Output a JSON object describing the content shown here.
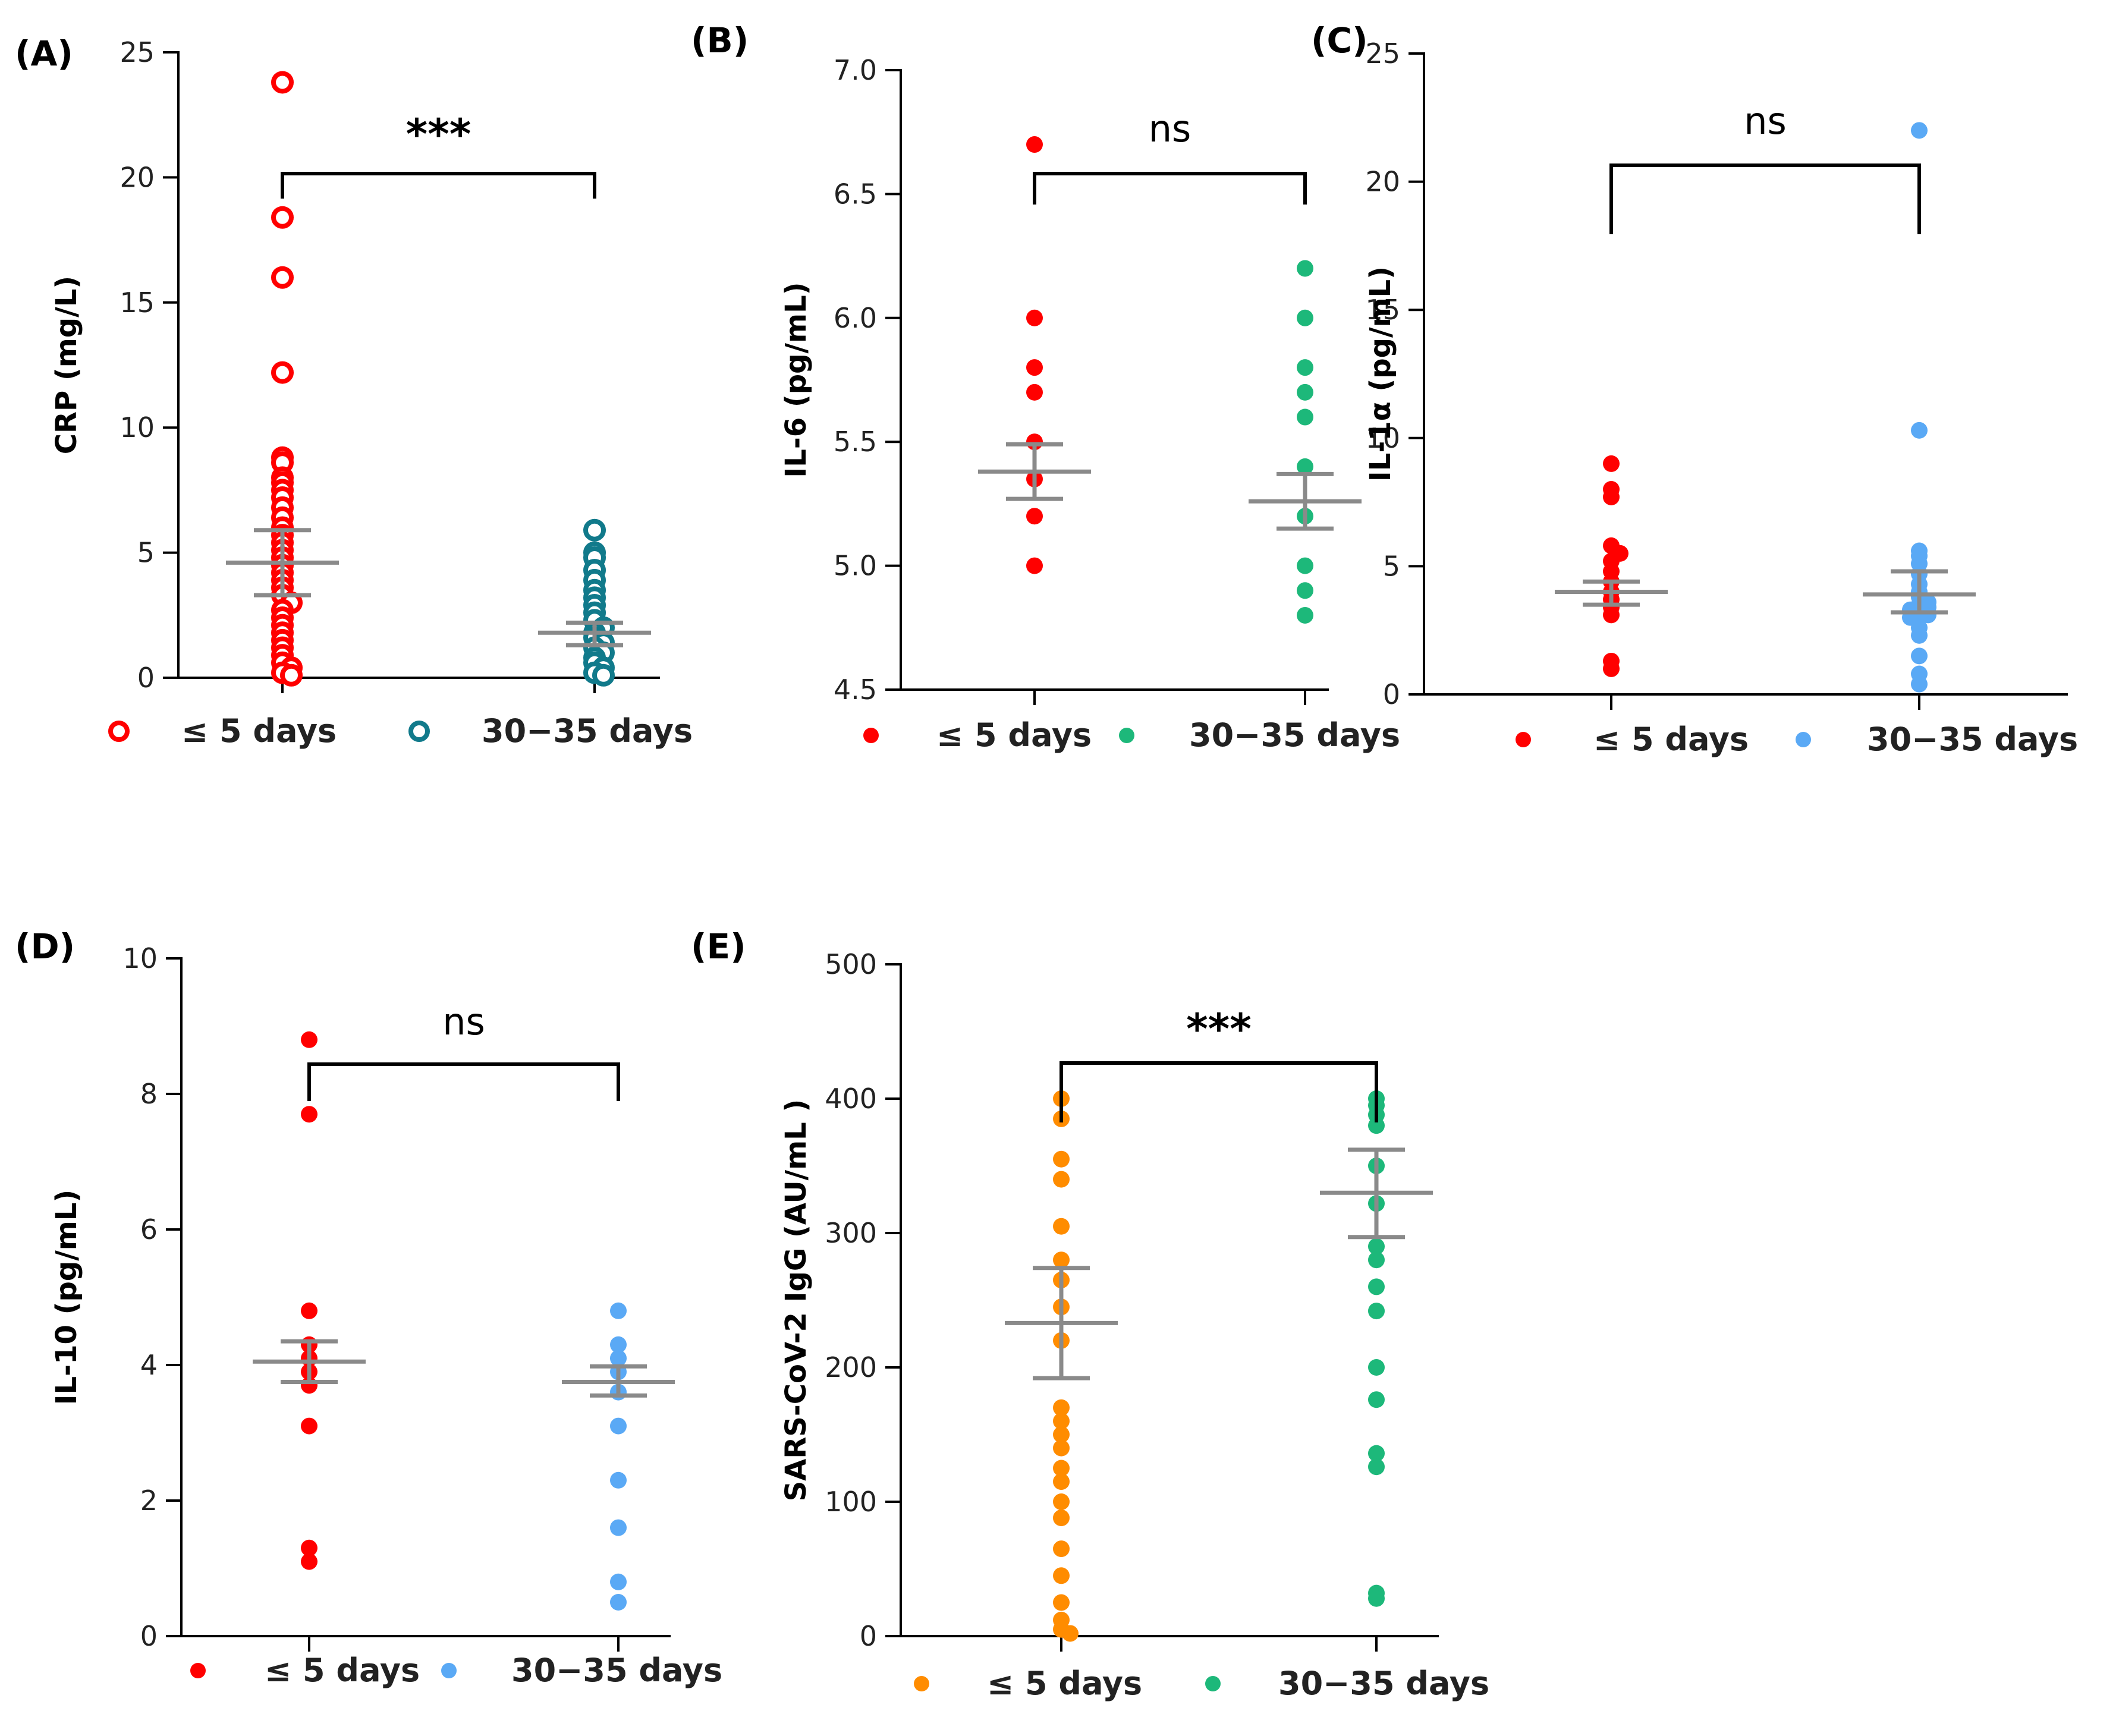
{
  "figure": {
    "panels": [
      "A",
      "B",
      "C",
      "D",
      "E"
    ]
  },
  "chart_data": [
    {
      "id": "A",
      "type": "scatter",
      "panel_label": "(A)",
      "title": "",
      "xlabel": "",
      "ylabel": "CRP (mg/L)",
      "ylim": [
        0,
        25
      ],
      "yticks": [
        0,
        5,
        10,
        15,
        20,
        25
      ],
      "ytick_labels": [
        "0",
        "5",
        "10",
        "15",
        "20",
        "25"
      ],
      "categories": [
        "≤5 days",
        "30–35 days"
      ],
      "legend": [
        "≤ 5 days",
        "30−35 days"
      ],
      "marker": "open-circle",
      "colors": [
        "#ff0000",
        "#117a8b"
      ],
      "significance": "***",
      "series": [
        {
          "name": "≤5 days",
          "mean": 4.6,
          "sem_low": 3.3,
          "sem_high": 5.9,
          "values": [
            23.8,
            18.4,
            16.0,
            12.2,
            8.8,
            8.6,
            8.0,
            7.8,
            7.5,
            7.2,
            6.8,
            6.4,
            6.0,
            5.7,
            5.4,
            5.1,
            4.8,
            4.5,
            4.2,
            3.9,
            3.6,
            3.3,
            3.0,
            2.7,
            2.4,
            2.1,
            1.8,
            1.5,
            1.2,
            0.9,
            0.6,
            0.4,
            0.2,
            0.1
          ]
        },
        {
          "name": "30–35 days",
          "mean": 1.8,
          "sem_low": 1.3,
          "sem_high": 2.2,
          "values": [
            5.9,
            5.0,
            4.8,
            4.3,
            3.9,
            3.5,
            3.2,
            2.9,
            2.6,
            2.3,
            2.0,
            1.8,
            1.6,
            1.4,
            1.2,
            1.0,
            0.8,
            0.6,
            0.4,
            0.2,
            0.1
          ]
        }
      ]
    },
    {
      "id": "B",
      "type": "scatter",
      "panel_label": "(B)",
      "title": "",
      "xlabel": "",
      "ylabel": "IL-6 (pg/mL)",
      "ylim": [
        4.5,
        7.0
      ],
      "yticks": [
        4.5,
        5.0,
        5.5,
        6.0,
        6.5,
        7.0
      ],
      "ytick_labels": [
        "4.5",
        "5.0",
        "5.5",
        "6.0",
        "6.5",
        "7.0"
      ],
      "categories": [
        "≤5 days",
        "30–35 days"
      ],
      "legend": [
        "≤ 5 days",
        "30−35 days"
      ],
      "marker": "filled-circle",
      "colors": [
        "#ff0000",
        "#1db87a"
      ],
      "significance": "ns",
      "series": [
        {
          "name": "≤5 days",
          "mean": 5.38,
          "sem_low": 5.27,
          "sem_high": 5.49,
          "values": [
            6.7,
            6.0,
            5.8,
            5.7,
            5.5,
            5.35,
            5.2,
            5.0
          ]
        },
        {
          "name": "30–35 days",
          "mean": 5.26,
          "sem_low": 5.15,
          "sem_high": 5.37,
          "values": [
            6.2,
            6.0,
            5.8,
            5.7,
            5.6,
            5.4,
            5.2,
            5.0,
            4.9,
            4.8
          ]
        }
      ]
    },
    {
      "id": "C",
      "type": "scatter",
      "panel_label": "(C)",
      "title": "",
      "xlabel": "",
      "ylabel": "IL-1α (pg/mL)",
      "ylim": [
        0,
        25
      ],
      "yticks": [
        0,
        5,
        10,
        15,
        20,
        25
      ],
      "ytick_labels": [
        "0",
        "5",
        "10",
        "15",
        "20",
        "25"
      ],
      "categories": [
        "≤5 days",
        "30–35 days"
      ],
      "legend": [
        "≤ 5 days",
        "30−35 days"
      ],
      "marker": "filled-circle",
      "colors": [
        "#ff0000",
        "#5aa9f5"
      ],
      "significance": "ns",
      "series": [
        {
          "name": "≤5 days",
          "mean": 4.0,
          "sem_low": 3.5,
          "sem_high": 4.4,
          "values": [
            9.0,
            8.0,
            7.7,
            5.8,
            5.5,
            5.2,
            4.8,
            4.4,
            4.0,
            3.7,
            3.4,
            3.1,
            1.3,
            1.0
          ]
        },
        {
          "name": "30–35 days",
          "mean": 3.9,
          "sem_low": 3.2,
          "sem_high": 4.8,
          "values": [
            22.0,
            10.3,
            5.6,
            5.4,
            5.1,
            4.7,
            4.3,
            4.0,
            3.8,
            3.6,
            3.5,
            3.4,
            3.3,
            3.2,
            3.1,
            3.0,
            2.6,
            2.3,
            1.5,
            0.8,
            0.4
          ]
        }
      ]
    },
    {
      "id": "D",
      "type": "scatter",
      "panel_label": "(D)",
      "title": "",
      "xlabel": "",
      "ylabel": "IL-10 (pg/mL)",
      "ylim": [
        0,
        10
      ],
      "yticks": [
        0,
        2,
        4,
        6,
        8,
        10
      ],
      "ytick_labels": [
        "0",
        "2",
        "4",
        "6",
        "8",
        "10"
      ],
      "categories": [
        "≤5 days",
        "30–35 days"
      ],
      "legend": [
        "≤ 5 days",
        "30−35 days"
      ],
      "marker": "filled-circle",
      "colors": [
        "#ff0000",
        "#5aa9f5"
      ],
      "significance": "ns",
      "series": [
        {
          "name": "≤5 days",
          "mean": 4.05,
          "sem_low": 3.75,
          "sem_high": 4.35,
          "values": [
            8.8,
            7.7,
            4.8,
            4.3,
            4.1,
            3.9,
            3.7,
            3.1,
            1.3,
            1.1
          ]
        },
        {
          "name": "30–35 days",
          "mean": 3.75,
          "sem_low": 3.55,
          "sem_high": 3.98,
          "values": [
            4.8,
            4.3,
            4.1,
            3.9,
            3.6,
            3.1,
            2.3,
            1.6,
            0.8,
            0.5
          ]
        }
      ]
    },
    {
      "id": "E",
      "type": "scatter",
      "panel_label": "(E)",
      "title": "",
      "xlabel": "",
      "ylabel": "SARS-CoV-2 IgG (AU/mL )",
      "ylim": [
        0,
        500
      ],
      "yticks": [
        0,
        100,
        200,
        300,
        400,
        500
      ],
      "ytick_labels": [
        "0",
        "100",
        "200",
        "300",
        "400",
        "500"
      ],
      "categories": [
        "≤5 days",
        "30–35 days"
      ],
      "legend": [
        "≤ 5 days",
        "30−35 days"
      ],
      "marker": "filled-circle",
      "colors": [
        "#ff8c00",
        "#1db87a"
      ],
      "significance": "***",
      "series": [
        {
          "name": "≤5 days",
          "mean": 233,
          "sem_low": 192,
          "sem_high": 274,
          "values": [
            400,
            385,
            355,
            340,
            305,
            280,
            265,
            245,
            220,
            170,
            160,
            150,
            140,
            125,
            115,
            100,
            88,
            65,
            45,
            25,
            12,
            5,
            2
          ]
        },
        {
          "name": "30–35 days",
          "mean": 330,
          "sem_low": 297,
          "sem_high": 362,
          "values": [
            400,
            395,
            388,
            380,
            350,
            322,
            290,
            280,
            260,
            242,
            200,
            176,
            136,
            126,
            32,
            28
          ]
        }
      ]
    }
  ]
}
